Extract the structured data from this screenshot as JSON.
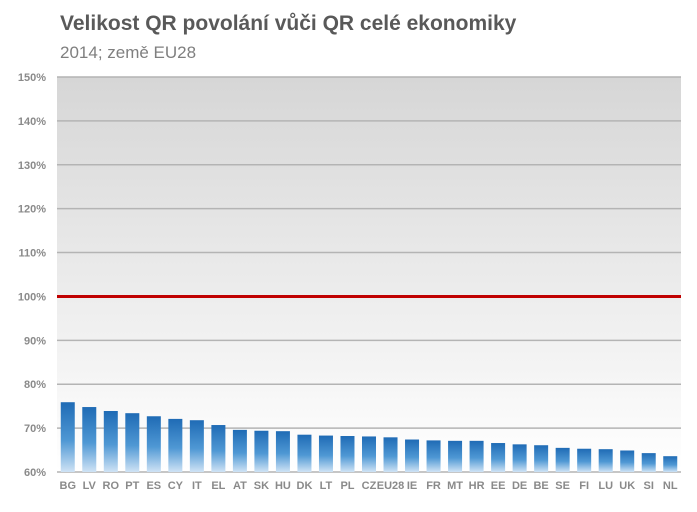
{
  "title": "Velikost QR povolání vůči QR celé ekonomiky",
  "subtitle": "2014; země EU28",
  "chart_data": {
    "type": "bar",
    "title": "Velikost QR povolání vůči QR celé ekonomiky",
    "subtitle": "2014; země EU28",
    "categories": [
      "BG",
      "LV",
      "RO",
      "PT",
      "ES",
      "CY",
      "IT",
      "EL",
      "AT",
      "SK",
      "HU",
      "DK",
      "LT",
      "PL",
      "CZ",
      "EU28",
      "IE",
      "FR",
      "MT",
      "HR",
      "EE",
      "DE",
      "BE",
      "SE",
      "FI",
      "LU",
      "UK",
      "SI",
      "NL"
    ],
    "values": [
      75.9,
      74.8,
      73.9,
      73.4,
      72.7,
      72.1,
      71.8,
      70.7,
      69.6,
      69.4,
      69.3,
      68.5,
      68.3,
      68.2,
      68.1,
      67.9,
      67.4,
      67.2,
      67.1,
      67.1,
      66.6,
      66.3,
      66.1,
      65.5,
      65.3,
      65.2,
      64.9,
      64.3,
      63.6
    ],
    "ylim": [
      60,
      150
    ],
    "y_ticks": [
      "60%",
      "70%",
      "80%",
      "90%",
      "100%",
      "110%",
      "120%",
      "130%",
      "140%",
      "150%"
    ],
    "y_tick_values": [
      60,
      70,
      80,
      90,
      100,
      110,
      120,
      130,
      140,
      150
    ],
    "reference_line": {
      "value": 100,
      "color": "#c00000"
    },
    "bar_color": "#2e75b6",
    "grid": true,
    "legend": "none",
    "xlabel": "",
    "ylabel": ""
  }
}
